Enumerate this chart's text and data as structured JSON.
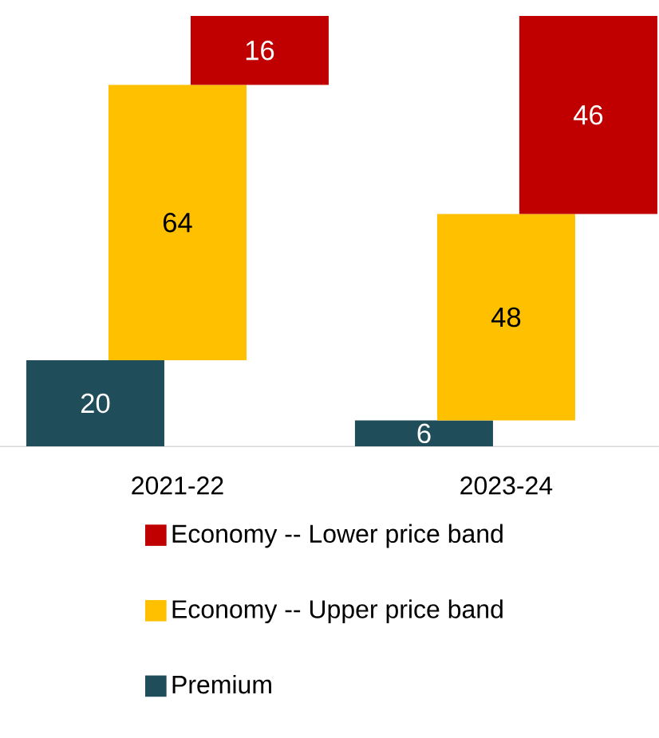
{
  "chart_data": {
    "type": "bar",
    "stacked": true,
    "data_labels": true,
    "legend": "bottom",
    "categories": [
      "2021-22",
      "2023-24"
    ],
    "series": [
      {
        "name": "Premium",
        "color": "#1f4e5a",
        "values": [
          20,
          6
        ]
      },
      {
        "name": "Economy -- Upper price band",
        "color": "#ffc000",
        "values": [
          64,
          48
        ]
      },
      {
        "name": "Economy -- Lower price band",
        "color": "#c00000",
        "values": [
          16,
          46
        ]
      }
    ]
  }
}
